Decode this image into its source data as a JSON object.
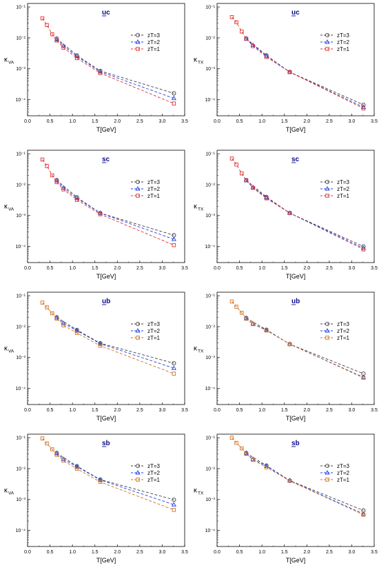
{
  "chart_data": [
    {
      "type": "line",
      "panel": "uc-VA",
      "title": "uc",
      "title_underlined_char": "u",
      "ylabel": "κ",
      "ylabel_sub": "VA",
      "xlabel": "T[GeV]",
      "xlim": [
        0,
        3.5
      ],
      "ylim": [
        3e-05,
        0.13
      ],
      "yscale": "log",
      "xticks": [
        "0.0",
        "0.5",
        "1.0",
        "1.5",
        "2.0",
        "2.5",
        "3.0",
        "3.5"
      ],
      "yticks": [
        "10⁻¹",
        "10⁻²",
        "10⁻³",
        "10⁻⁴"
      ],
      "yticks_values": [
        0.1,
        0.01,
        0.001,
        0.0001
      ],
      "legend_position": "right",
      "series": [
        {
          "name": "zT=3",
          "color": "#404040",
          "marker": "circle",
          "x": [
            0.65,
            1.1,
            1.62,
            3.26
          ],
          "y": [
            0.0095,
            0.0027,
            0.00085,
            0.00016
          ]
        },
        {
          "name": "zT=2",
          "color": "#1f3fe0",
          "marker": "triangle",
          "x": [
            0.65,
            0.8,
            1.1,
            1.62,
            3.26
          ],
          "y": [
            0.0088,
            0.0055,
            0.0025,
            0.0008,
            0.00011
          ]
        },
        {
          "name": "zT=1",
          "color": "#e03030",
          "marker": "square",
          "x": [
            0.33,
            0.43,
            0.55,
            0.65,
            0.8,
            1.1,
            1.62,
            3.26
          ],
          "y": [
            0.043,
            0.026,
            0.013,
            0.0082,
            0.0048,
            0.0022,
            0.00072,
            7.5e-05
          ]
        }
      ]
    },
    {
      "type": "line",
      "panel": "uc-TX",
      "title": "uc",
      "title_underlined_char": "u",
      "ylabel": "κ",
      "ylabel_sub": "TX",
      "xlabel": "T[GeV]",
      "xlim": [
        0,
        3.5
      ],
      "ylim": [
        3e-05,
        0.13
      ],
      "yscale": "log",
      "xticks": [
        "0.0",
        "0.5",
        "1.0",
        "1.5",
        "2.0",
        "2.5",
        "3.0",
        "3.5"
      ],
      "yticks": [
        "10⁻¹",
        "10⁻²",
        "10⁻³",
        "10⁻⁴"
      ],
      "yticks_values": [
        0.1,
        0.01,
        0.001,
        0.0001
      ],
      "legend_position": "right",
      "series": [
        {
          "name": "zT=3",
          "color": "#404040",
          "marker": "circle",
          "x": [
            0.65,
            1.1,
            1.62,
            3.26
          ],
          "y": [
            0.0095,
            0.0027,
            0.00078,
            6.8e-05
          ]
        },
        {
          "name": "zT=2",
          "color": "#1f3fe0",
          "marker": "triangle",
          "x": [
            0.65,
            0.8,
            1.1,
            1.62,
            3.26
          ],
          "y": [
            0.0093,
            0.0058,
            0.0026,
            0.00078,
            5.7e-05
          ]
        },
        {
          "name": "zT=1",
          "color": "#e03030",
          "marker": "square",
          "x": [
            0.33,
            0.43,
            0.55,
            0.65,
            0.8,
            1.1,
            1.62,
            3.26
          ],
          "y": [
            0.047,
            0.032,
            0.016,
            0.0093,
            0.0054,
            0.0024,
            0.00078,
            5.2e-05
          ]
        }
      ]
    },
    {
      "type": "line",
      "panel": "sc-VA",
      "title": "sc",
      "title_underlined_char": "s",
      "ylabel": "κ",
      "ylabel_sub": "VA",
      "xlabel": "T[GeV]",
      "xlim": [
        0,
        3.5
      ],
      "ylim": [
        3e-05,
        0.13
      ],
      "yscale": "log",
      "xticks": [
        "0.0",
        "0.5",
        "1.0",
        "1.5",
        "2.0",
        "2.5",
        "3.0",
        "3.5"
      ],
      "yticks": [
        "10⁻¹",
        "10⁻²",
        "10⁻³",
        "10⁻⁴"
      ],
      "yticks_values": [
        0.1,
        0.01,
        0.001,
        0.0001
      ],
      "legend_position": "right",
      "series": [
        {
          "name": "zT=3",
          "color": "#404040",
          "marker": "circle",
          "x": [
            0.65,
            1.1,
            1.62,
            3.26
          ],
          "y": [
            0.014,
            0.0039,
            0.0012,
            0.00023
          ]
        },
        {
          "name": "zT=2",
          "color": "#1f3fe0",
          "marker": "triangle",
          "x": [
            0.65,
            0.8,
            1.1,
            1.62,
            3.26
          ],
          "y": [
            0.0135,
            0.0079,
            0.0036,
            0.0012,
            0.00017
          ]
        },
        {
          "name": "zT=1",
          "color": "#e03030",
          "marker": "square",
          "x": [
            0.33,
            0.43,
            0.55,
            0.65,
            0.8,
            1.1,
            1.62,
            3.26
          ],
          "y": [
            0.065,
            0.04,
            0.02,
            0.012,
            0.007,
            0.0032,
            0.0011,
            0.00011
          ]
        }
      ]
    },
    {
      "type": "line",
      "panel": "sc-TX",
      "title": "sc",
      "title_underlined_char": "s",
      "ylabel": "κ",
      "ylabel_sub": "TX",
      "xlabel": "T[GeV]",
      "xlim": [
        0,
        3.5
      ],
      "ylim": [
        3e-05,
        0.13
      ],
      "yscale": "log",
      "xticks": [
        "0.0",
        "0.5",
        "1.0",
        "1.5",
        "2.0",
        "2.5",
        "3.0",
        "3.5"
      ],
      "yticks": [
        "10⁻¹",
        "10⁻²",
        "10⁻³",
        "10⁻⁴"
      ],
      "yticks_values": [
        0.1,
        0.01,
        0.001,
        0.0001
      ],
      "legend_position": "right",
      "series": [
        {
          "name": "zT=3",
          "color": "#404040",
          "marker": "circle",
          "x": [
            0.65,
            1.1,
            1.62,
            3.26
          ],
          "y": [
            0.014,
            0.004,
            0.0012,
            0.0001
          ]
        },
        {
          "name": "zT=2",
          "color": "#1f3fe0",
          "marker": "triangle",
          "x": [
            0.65,
            0.8,
            1.1,
            1.62,
            3.26
          ],
          "y": [
            0.0135,
            0.0082,
            0.0038,
            0.0012,
            8.8e-05
          ]
        },
        {
          "name": "zT=1",
          "color": "#e03030",
          "marker": "square",
          "x": [
            0.33,
            0.43,
            0.55,
            0.65,
            0.8,
            1.1,
            1.62,
            3.26
          ],
          "y": [
            0.07,
            0.045,
            0.023,
            0.014,
            0.0078,
            0.0036,
            0.0012,
            8e-05
          ]
        }
      ]
    },
    {
      "type": "line",
      "panel": "ub-VA",
      "title": "ub",
      "title_underlined_char": "u",
      "ylabel": "κ",
      "ylabel_sub": "VA",
      "xlabel": "T[GeV]",
      "xlim": [
        0,
        3.5
      ],
      "ylim": [
        3e-05,
        0.13
      ],
      "yscale": "log",
      "xticks": [
        "0.0",
        "0.5",
        "1.0",
        "1.5",
        "2.0",
        "2.5",
        "3.0",
        "3.5"
      ],
      "yticks": [
        "10⁻¹",
        "10⁻²",
        "10⁻³",
        "10⁻⁴"
      ],
      "yticks_values": [
        0.1,
        0.01,
        0.001,
        0.0001
      ],
      "legend_position": "right",
      "series": [
        {
          "name": "zT=3",
          "color": "#404040",
          "marker": "circle",
          "x": [
            0.65,
            1.1,
            1.62,
            3.26
          ],
          "y": [
            0.02,
            0.0078,
            0.0029,
            0.00065
          ]
        },
        {
          "name": "zT=2",
          "color": "#1f3fe0",
          "marker": "triangle",
          "x": [
            0.65,
            0.8,
            1.1,
            1.62,
            3.26
          ],
          "y": [
            0.0195,
            0.0128,
            0.0074,
            0.0028,
            0.00045
          ]
        },
        {
          "name": "zT=1",
          "color": "#d07020",
          "marker": "square",
          "x": [
            0.33,
            0.43,
            0.55,
            0.65,
            0.8,
            1.1,
            1.62,
            3.26
          ],
          "y": [
            0.06,
            0.042,
            0.027,
            0.018,
            0.011,
            0.0062,
            0.0024,
            0.0003
          ]
        }
      ]
    },
    {
      "type": "line",
      "panel": "ub-TX",
      "title": "ub",
      "title_underlined_char": "u",
      "ylabel": "κ",
      "ylabel_sub": "TX",
      "xlabel": "T[GeV]",
      "xlim": [
        0,
        3.5
      ],
      "ylim": [
        3e-05,
        0.13
      ],
      "yscale": "log",
      "xticks": [
        "0.0",
        "0.5",
        "1.0",
        "1.5",
        "2.0",
        "2.5",
        "3.0",
        "3.5"
      ],
      "yticks": [
        "10⁻¹",
        "10⁻²",
        "10⁻³",
        "10⁻⁴"
      ],
      "yticks_values": [
        0.1,
        0.01,
        0.001,
        0.0001
      ],
      "legend_position": "right",
      "series": [
        {
          "name": "zT=3",
          "color": "#404040",
          "marker": "circle",
          "x": [
            0.65,
            1.1,
            1.62,
            3.26
          ],
          "y": [
            0.019,
            0.0079,
            0.0027,
            0.0003
          ]
        },
        {
          "name": "zT=2",
          "color": "#1f3fe0",
          "marker": "triangle",
          "x": [
            0.65,
            0.8,
            1.1,
            1.62,
            3.26
          ],
          "y": [
            0.0185,
            0.0123,
            0.0077,
            0.0027,
            0.00023
          ]
        },
        {
          "name": "zT=1",
          "color": "#d07020",
          "marker": "square",
          "x": [
            0.33,
            0.43,
            0.55,
            0.65,
            0.8,
            1.1,
            1.62,
            3.26
          ],
          "y": [
            0.065,
            0.044,
            0.028,
            0.018,
            0.012,
            0.0075,
            0.0027,
            0.00022
          ]
        }
      ]
    },
    {
      "type": "line",
      "panel": "sb-VA",
      "title": "sb",
      "title_underlined_char": "s",
      "ylabel": "κ",
      "ylabel_sub": "VA",
      "xlabel": "T[GeV]",
      "xlim": [
        0,
        3.5
      ],
      "ylim": [
        3e-05,
        0.13
      ],
      "yscale": "log",
      "xticks": [
        "0.0",
        "0.5",
        "1.0",
        "1.5",
        "2.0",
        "2.5",
        "3.0",
        "3.5"
      ],
      "yticks": [
        "10⁻¹",
        "10⁻²",
        "10⁻³",
        "10⁻⁴"
      ],
      "yticks_values": [
        0.1,
        0.01,
        0.001,
        0.0001
      ],
      "legend_position": "right",
      "series": [
        {
          "name": "zT=3",
          "color": "#404040",
          "marker": "circle",
          "x": [
            0.65,
            1.1,
            1.62,
            3.26
          ],
          "y": [
            0.032,
            0.012,
            0.0044,
            0.00098
          ]
        },
        {
          "name": "zT=2",
          "color": "#1f3fe0",
          "marker": "triangle",
          "x": [
            0.65,
            0.8,
            1.1,
            1.62,
            3.26
          ],
          "y": [
            0.031,
            0.02,
            0.0115,
            0.0043,
            0.00068
          ]
        },
        {
          "name": "zT=1",
          "color": "#d07020",
          "marker": "square",
          "x": [
            0.33,
            0.43,
            0.55,
            0.65,
            0.8,
            1.1,
            1.62,
            3.26
          ],
          "y": [
            0.095,
            0.065,
            0.042,
            0.028,
            0.018,
            0.0098,
            0.0037,
            0.00046
          ]
        }
      ]
    },
    {
      "type": "line",
      "panel": "sb-TX",
      "title": "sb",
      "title_underlined_char": "s",
      "ylabel": "κ",
      "ylabel_sub": "TX",
      "xlabel": "T[GeV]",
      "xlim": [
        0,
        3.5
      ],
      "ylim": [
        3e-05,
        0.13
      ],
      "yscale": "log",
      "xticks": [
        "0.0",
        "0.5",
        "1.0",
        "1.5",
        "2.0",
        "2.5",
        "3.0",
        "3.5"
      ],
      "yticks": [
        "10⁻¹",
        "10⁻²",
        "10⁻³",
        "10⁻⁴"
      ],
      "yticks_values": [
        0.1,
        0.01,
        0.001,
        0.0001
      ],
      "legend_position": "right",
      "series": [
        {
          "name": "zT=3",
          "color": "#404040",
          "marker": "circle",
          "x": [
            0.65,
            1.1,
            1.62,
            3.26
          ],
          "y": [
            0.032,
            0.0125,
            0.0041,
            0.00044
          ]
        },
        {
          "name": "zT=2",
          "color": "#1f3fe0",
          "marker": "triangle",
          "x": [
            0.65,
            0.8,
            1.1,
            1.62,
            3.26
          ],
          "y": [
            0.031,
            0.02,
            0.012,
            0.0041,
            0.00034
          ]
        },
        {
          "name": "zT=1",
          "color": "#d07020",
          "marker": "square",
          "x": [
            0.33,
            0.43,
            0.55,
            0.65,
            0.8,
            1.1,
            1.62,
            3.26
          ],
          "y": [
            0.1,
            0.068,
            0.045,
            0.03,
            0.019,
            0.011,
            0.004,
            0.00032
          ]
        }
      ]
    }
  ]
}
